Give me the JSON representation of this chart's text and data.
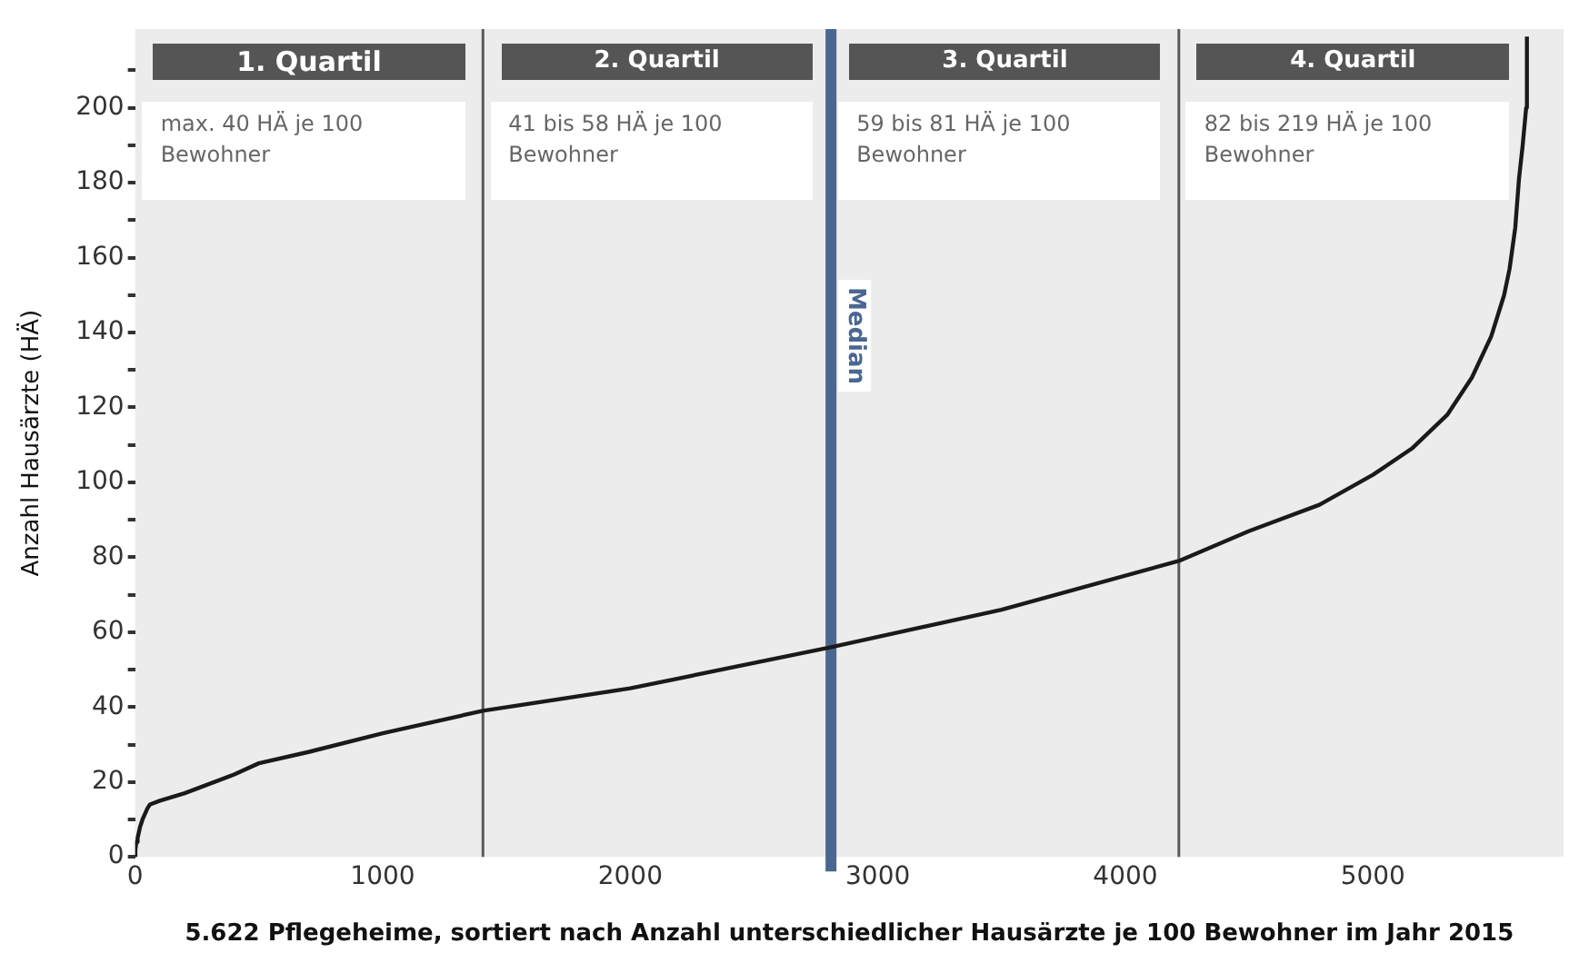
{
  "chart_data": {
    "type": "line",
    "xlabel": "5.622 Pflegeheime, sortiert nach Anzahl unterschiedlicher Hausärzte je 100 Bewohner im Jahr 2015",
    "ylabel": "Anzahl Hausärzte (HÄ)",
    "x": [
      0,
      1,
      5,
      10,
      20,
      30,
      50,
      60,
      100,
      200,
      400,
      500,
      700,
      1000,
      1405,
      2000,
      2811,
      3500,
      4216,
      4500,
      4784,
      5000,
      5157,
      5300,
      5400,
      5478,
      5530,
      5552,
      5575,
      5590,
      5605,
      5619,
      5622
    ],
    "series": [
      {
        "color": "#1a1a1a",
        "values": [
          0,
          2,
          4,
          5,
          8,
          10,
          13,
          14,
          15,
          17,
          22,
          25,
          28,
          33,
          39,
          45,
          56,
          66,
          79,
          87,
          94,
          102,
          109,
          118,
          128,
          139,
          150,
          157,
          168,
          181,
          190,
          200,
          219
        ]
      }
    ],
    "xlim": [
      0,
      5770
    ],
    "xticks": [
      0,
      1000,
      2000,
      3000,
      4000,
      5000
    ],
    "ylim": [
      0,
      221
    ],
    "yticks": [
      0,
      {
        "value": 10,
        "label": null
      },
      20,
      {
        "value": 30,
        "label": null
      },
      40,
      {
        "value": 50,
        "label": null
      },
      60,
      {
        "value": 70,
        "label": null
      },
      80,
      {
        "value": 90,
        "label": null
      },
      100,
      {
        "value": 110,
        "label": null
      },
      120,
      {
        "value": 130,
        "label": null
      },
      140,
      {
        "value": 150,
        "label": null
      },
      160,
      {
        "value": 170,
        "label": null
      },
      180,
      {
        "value": 190,
        "label": null
      },
      200,
      {
        "value": 210,
        "label": null
      }
    ],
    "ref_lines": [
      {
        "axis": "x",
        "value": 1405,
        "color": "#595959"
      },
      {
        "axis": "x",
        "value": 2811,
        "label": "Median",
        "color": "#4a6791"
      },
      {
        "axis": "x",
        "value": 4216,
        "color": "#595959"
      }
    ],
    "annotations": [
      "1. Quartil",
      "2. Quartil",
      "3. Quartil",
      "4. Quartil",
      "max. 40 HÄ je 100 Bewohner",
      "41 bis 58 HÄ je 100 Bewohner",
      "59 bis 81 HÄ je 100 Bewohner",
      "82 bis 219 HÄ je 100 Bewohner"
    ],
    "grid": false,
    "legend": false,
    "marker": "none",
    "line_style": "solid"
  }
}
